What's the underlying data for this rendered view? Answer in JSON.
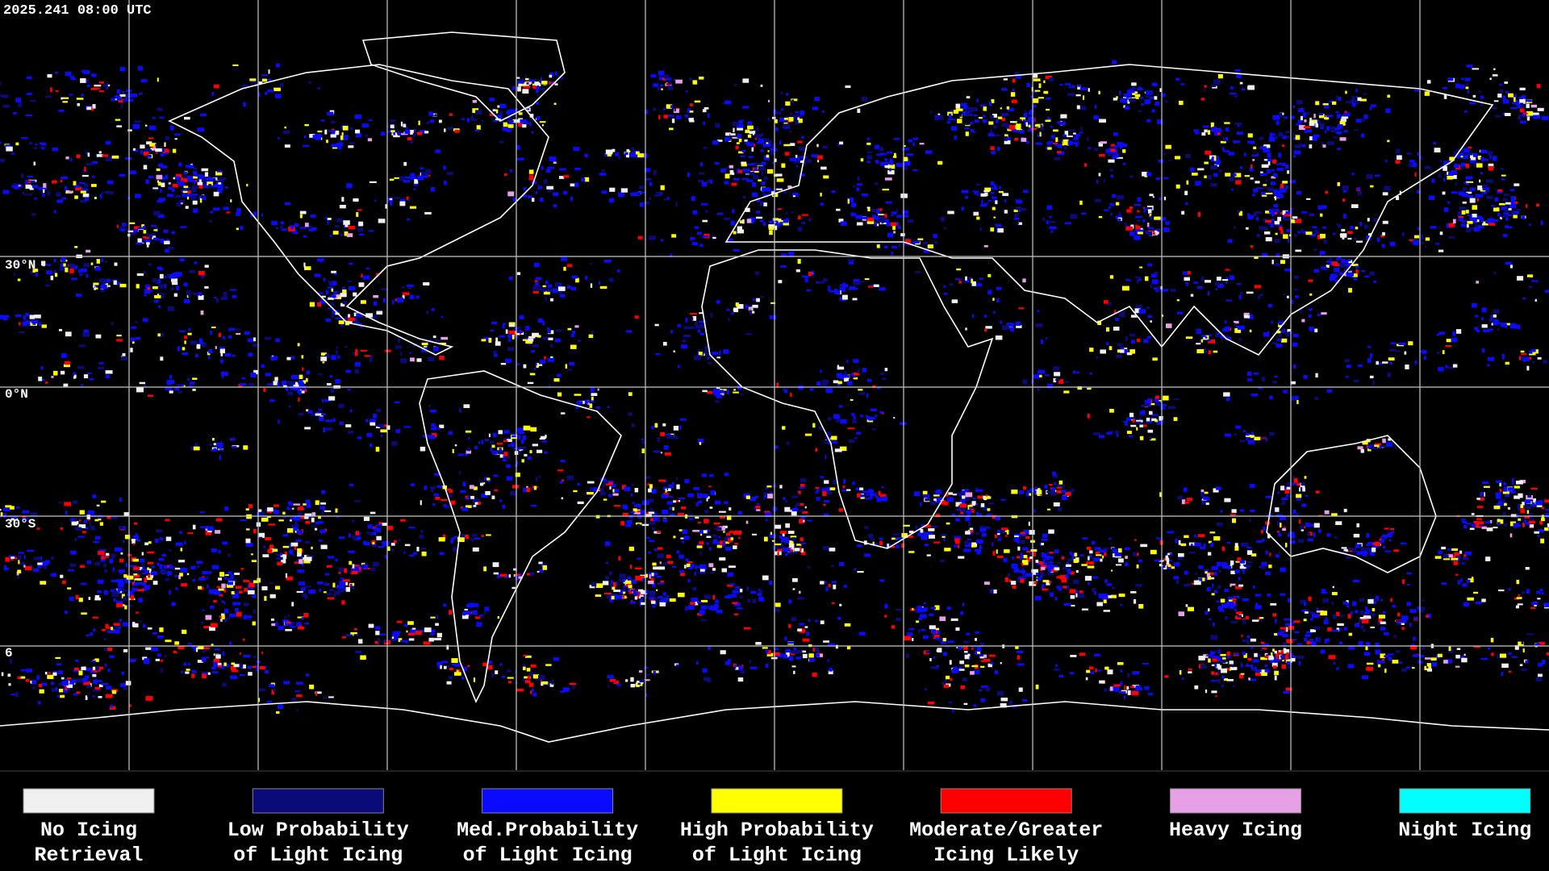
{
  "header": {
    "timestamp": "2025.241 08:00 UTC"
  },
  "latitude_labels": [
    "30°N",
    "0°N",
    "30°S",
    "6"
  ],
  "legend": [
    {
      "lines": [
        "No Icing",
        "Retrieval"
      ],
      "color": "#f0f0f0"
    },
    {
      "lines": [
        "Low Probability",
        "of Light Icing"
      ],
      "color": "#0a0a78"
    },
    {
      "lines": [
        "Med.Probability",
        "of Light Icing"
      ],
      "color": "#0a0aff"
    },
    {
      "lines": [
        "High Probability",
        "of Light Icing"
      ],
      "color": "#ffff00"
    },
    {
      "lines": [
        "Moderate/Greater",
        "Icing Likely"
      ],
      "color": "#ff0000"
    },
    {
      "lines": [
        "Heavy Icing"
      ],
      "color": "#e6a0e6"
    },
    {
      "lines": [
        "Night Icing"
      ],
      "color": "#00ffff"
    }
  ]
}
